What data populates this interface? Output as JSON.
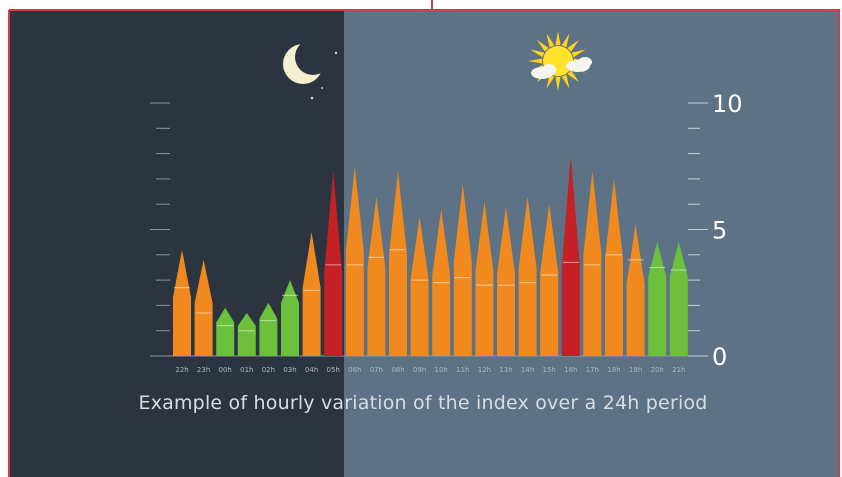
{
  "caption": "Example of hourly variation of the index over a 24h period",
  "icons": {
    "night": "crescent-moon-icon",
    "day": "sun-with-clouds-icon"
  },
  "colors": {
    "night_bg": "#2c3440",
    "day_bg": "#5d7284",
    "border": "#d93a3a",
    "green": "#6cc03c",
    "orange": "#f08a1e",
    "red": "#c42025"
  },
  "chart_data": {
    "type": "bar",
    "categories": [
      "22h",
      "23h",
      "00h",
      "01h",
      "02h",
      "03h",
      "04h",
      "05h",
      "06h",
      "07h",
      "08h",
      "09h",
      "10h",
      "11h",
      "12h",
      "13h",
      "14h",
      "15h",
      "16h",
      "17h",
      "18h",
      "19h",
      "20h",
      "21h"
    ],
    "values": [
      4.2,
      3.8,
      1.9,
      1.7,
      2.1,
      3.0,
      4.9,
      7.3,
      7.5,
      6.3,
      7.3,
      5.5,
      5.8,
      6.8,
      6.1,
      5.9,
      6.3,
      6.0,
      7.9,
      7.3,
      7.0,
      5.2,
      4.5,
      4.5
    ],
    "inner_levels": [
      2.7,
      1.7,
      1.2,
      1.0,
      1.4,
      2.4,
      2.6,
      3.6,
      3.6,
      3.9,
      4.2,
      3.0,
      2.9,
      3.1,
      2.8,
      2.8,
      2.9,
      3.2,
      3.7,
      3.6,
      4.0,
      3.8,
      3.5,
      3.4
    ],
    "levels": [
      "orange",
      "orange",
      "green",
      "green",
      "green",
      "green",
      "orange",
      "red",
      "orange",
      "orange",
      "orange",
      "orange",
      "orange",
      "orange",
      "orange",
      "orange",
      "orange",
      "orange",
      "red",
      "orange",
      "orange",
      "orange",
      "green",
      "green"
    ],
    "yticks": [
      "0",
      "5",
      "10"
    ],
    "ylim": [
      0,
      10
    ],
    "title": "",
    "xlabel": "",
    "ylabel": ""
  }
}
